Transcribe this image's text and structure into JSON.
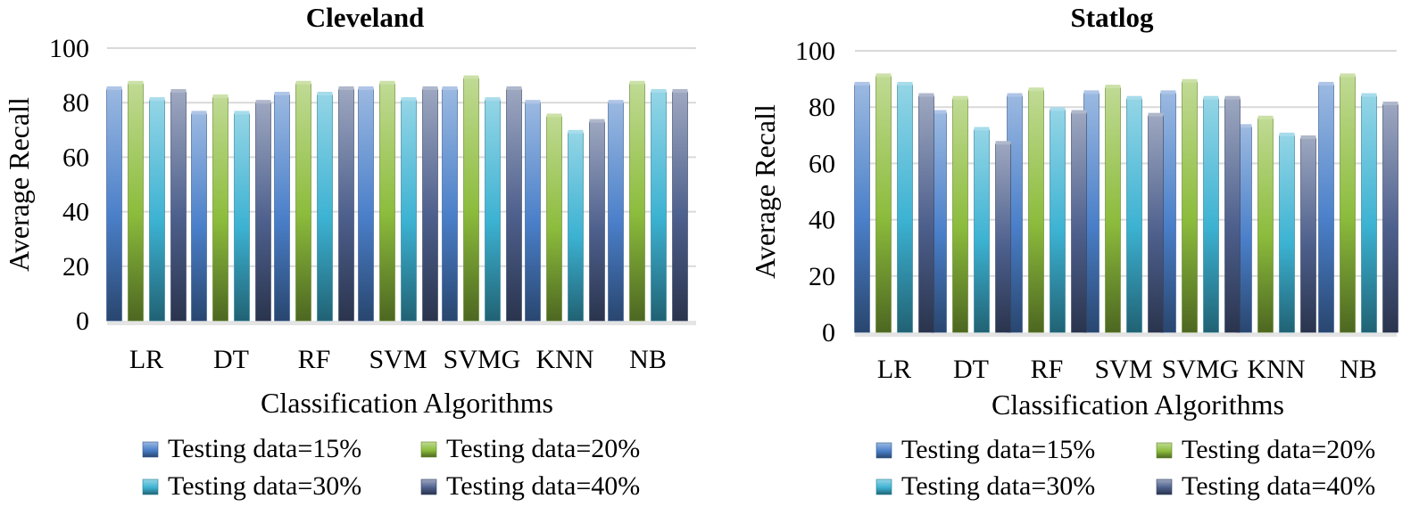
{
  "chart_data": [
    {
      "type": "bar",
      "title": "Cleveland",
      "xlabel": "Classification Algorithms",
      "ylabel": "Average Recall",
      "ylim": [
        0,
        100
      ],
      "yticks": [
        0,
        20,
        40,
        60,
        80,
        100
      ],
      "grid": true,
      "legend_position": "bottom",
      "categories": [
        "LR",
        "DT",
        "RF",
        "SVM",
        "SVMG",
        "KNN",
        "NB"
      ],
      "series": [
        {
          "name": "Testing data=15%",
          "color": "#4a7fc9",
          "values": [
            85,
            76,
            83,
            85,
            85,
            80,
            80
          ]
        },
        {
          "name": "Testing data=20%",
          "color": "#8cbc3c",
          "values": [
            87,
            82,
            87,
            87,
            89,
            75,
            87
          ]
        },
        {
          "name": "Testing data=30%",
          "color": "#3cb2d2",
          "values": [
            81,
            76,
            83,
            81,
            81,
            69,
            84
          ]
        },
        {
          "name": "Testing data=40%",
          "color": "#4d5f8c",
          "values": [
            84,
            80,
            85,
            85,
            85,
            73,
            84
          ]
        }
      ]
    },
    {
      "type": "bar",
      "title": "Statlog",
      "xlabel": "Classification Algorithms",
      "ylabel": "Average Recall",
      "ylim": [
        0,
        100
      ],
      "yticks": [
        0,
        20,
        40,
        60,
        80,
        100
      ],
      "grid": true,
      "legend_position": "bottom",
      "categories": [
        "LR",
        "DT",
        "RF",
        "SVM",
        "SVMG",
        "KNN",
        "NB"
      ],
      "series": [
        {
          "name": "Testing data=15%",
          "color": "#4a7fc9",
          "values": [
            88,
            78,
            84,
            85,
            85,
            73,
            88
          ]
        },
        {
          "name": "Testing data=20%",
          "color": "#8cbc3c",
          "values": [
            91,
            83,
            86,
            87,
            89,
            76,
            91
          ]
        },
        {
          "name": "Testing data=30%",
          "color": "#3cb2d2",
          "values": [
            88,
            72,
            79,
            83,
            83,
            70,
            84
          ]
        },
        {
          "name": "Testing data=40%",
          "color": "#4d5f8c",
          "values": [
            84,
            67,
            78,
            77,
            83,
            69,
            81
          ]
        }
      ]
    }
  ]
}
